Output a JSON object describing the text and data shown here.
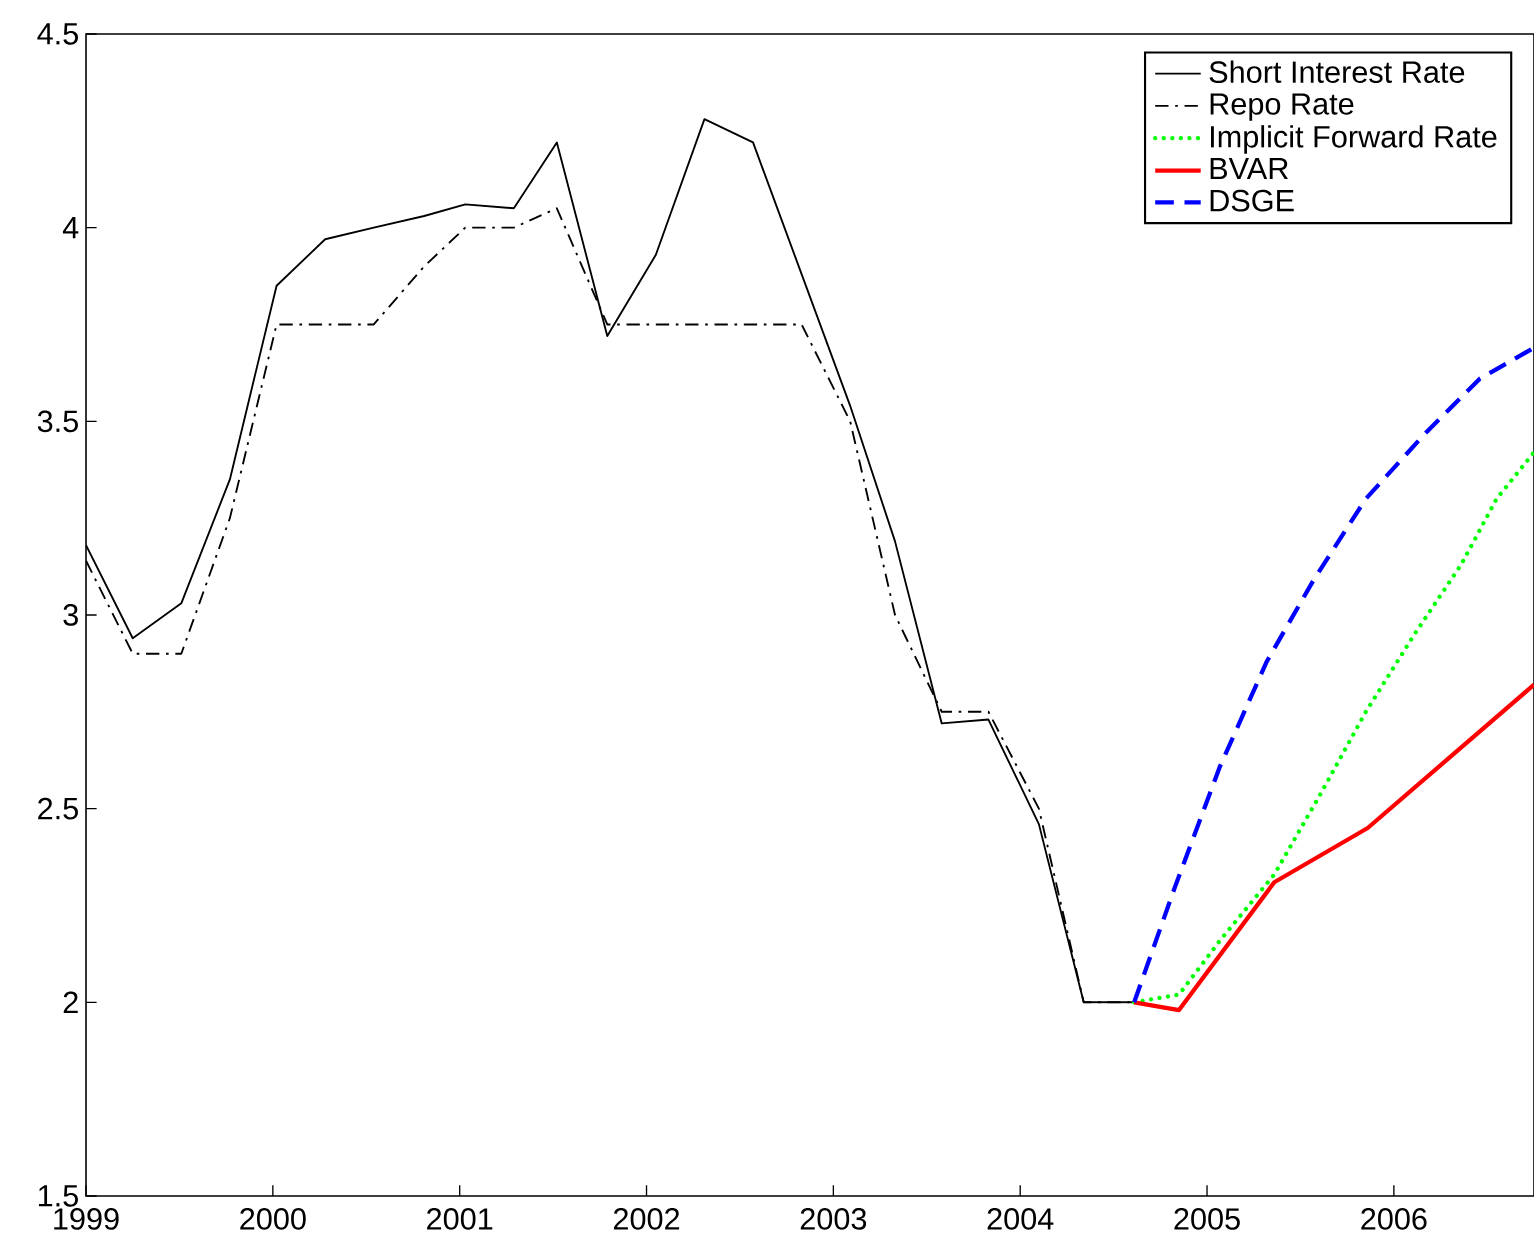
{
  "chart_data": {
    "type": "line",
    "xlim": [
      1999,
      2006.75
    ],
    "ylim": [
      1.5,
      4.5
    ],
    "xticks": [
      1999,
      2000,
      2001,
      2002,
      2003,
      2004,
      2005,
      2006
    ],
    "yticks": [
      1.5,
      2,
      2.5,
      3,
      3.5,
      4,
      4.5
    ],
    "grid": false,
    "legend": "top right",
    "series": [
      {
        "name": "Short Interest Rate",
        "color": "#000000",
        "line_style": "solid",
        "x": [
          1999.0,
          1999.25,
          1999.51,
          1999.77,
          2000.02,
          2000.28,
          2000.54,
          2000.81,
          2001.03,
          2001.29,
          2001.52,
          2001.79,
          2002.05,
          2002.31,
          2002.57,
          2002.83,
          2003.09,
          2003.33,
          2003.58,
          2003.83,
          2004.1,
          2004.34,
          2004.61
        ],
        "values": [
          3.18,
          2.94,
          3.03,
          3.35,
          3.85,
          3.97,
          4.0,
          4.03,
          4.06,
          4.05,
          4.22,
          3.72,
          3.93,
          4.28,
          4.22,
          3.88,
          3.54,
          3.19,
          2.72,
          2.73,
          2.46,
          2.0,
          2.0
        ]
      },
      {
        "name": "Repo Rate",
        "color": "#000000",
        "line_style": "dashdot",
        "x": [
          1999.0,
          1999.25,
          1999.51,
          1999.77,
          2000.02,
          2000.28,
          2000.54,
          2000.81,
          2001.03,
          2001.29,
          2001.52,
          2001.79,
          2002.05,
          2002.31,
          2002.57,
          2002.83,
          2003.09,
          2003.33,
          2003.58,
          2003.83,
          2004.1,
          2004.34,
          2004.61
        ],
        "values": [
          3.14,
          2.9,
          2.9,
          3.25,
          3.75,
          3.75,
          3.75,
          3.9,
          4.0,
          4.0,
          4.05,
          3.75,
          3.75,
          3.75,
          3.75,
          3.75,
          3.5,
          3.0,
          2.75,
          2.75,
          2.5,
          2.0,
          2.0
        ]
      },
      {
        "name": "Implicit Forward Rate",
        "color": "#00ff00",
        "line_style": "dotted",
        "x": [
          2004.61,
          2004.85,
          2005.07,
          2005.36,
          2005.61,
          2005.85,
          2006.11,
          2006.36,
          2006.55,
          2006.75
        ],
        "values": [
          2.0,
          2.02,
          2.16,
          2.33,
          2.54,
          2.75,
          2.95,
          3.13,
          3.3,
          3.42
        ]
      },
      {
        "name": "BVAR",
        "color": "#ff0000",
        "line_style": "solid",
        "x": [
          2004.61,
          2004.85,
          2005.36,
          2005.86,
          2006.75
        ],
        "values": [
          2.0,
          1.98,
          2.31,
          2.45,
          2.82
        ]
      },
      {
        "name": "DSGE",
        "color": "#0000ff",
        "line_style": "dashed",
        "x": [
          2004.61,
          2004.83,
          2005.07,
          2005.32,
          2005.57,
          2005.85,
          2006.17,
          2006.46,
          2006.75
        ],
        "values": [
          2.0,
          2.3,
          2.61,
          2.88,
          3.09,
          3.3,
          3.47,
          3.61,
          3.69
        ]
      }
    ]
  }
}
